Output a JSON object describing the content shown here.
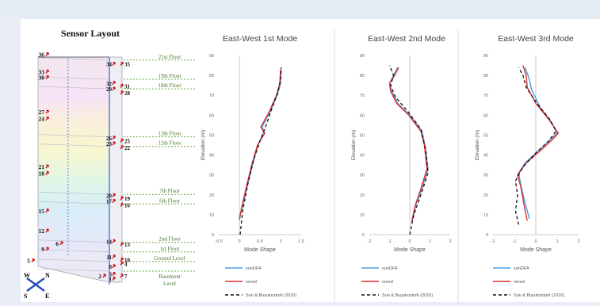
{
  "sensor_layout": {
    "title": "Sensor Layout",
    "floors": [
      {
        "label": "21st Floor",
        "level": 21
      },
      {
        "label": "19th Floor",
        "level": 19
      },
      {
        "label": "18th Floor",
        "level": 18
      },
      {
        "label": "13th Floor",
        "level": 13
      },
      {
        "label": "12th Floor",
        "level": 12
      },
      {
        "label": "7th Floor",
        "level": 7
      },
      {
        "label": "6th Floor",
        "level": 6
      },
      {
        "label": "2nd Floor",
        "level": 2
      },
      {
        "label": "1st Floor",
        "level": 1
      },
      {
        "label": "Ground Level",
        "level": 0
      },
      {
        "label": "Basement Level",
        "level": -1
      }
    ],
    "left_sensors": [
      {
        "id": "36",
        "level": 21.6
      },
      {
        "id": "33",
        "level": 19.8
      },
      {
        "id": "30",
        "level": 19.2
      },
      {
        "id": "27",
        "level": 15.6
      },
      {
        "id": "24",
        "level": 14.9
      },
      {
        "id": "21",
        "level": 9.9
      },
      {
        "id": "18",
        "level": 9.2
      },
      {
        "id": "15",
        "level": 5.3
      },
      {
        "id": "12",
        "level": 3.2
      },
      {
        "id": "9",
        "level": 1.3
      },
      {
        "id": "6",
        "level": 1.9
      },
      {
        "id": "5",
        "level": 0.1
      },
      {
        "id": "2",
        "level": -1.5
      }
    ],
    "right_sensors": [
      {
        "id": "34",
        "level": 20.6
      },
      {
        "id": "35",
        "level": 20.6
      },
      {
        "id": "32",
        "level": 18.6
      },
      {
        "id": "31",
        "level": 18.3
      },
      {
        "id": "29",
        "level": 18.0
      },
      {
        "id": "28",
        "level": 17.6
      },
      {
        "id": "26",
        "level": 12.9
      },
      {
        "id": "25",
        "level": 12.6
      },
      {
        "id": "23",
        "level": 12.3
      },
      {
        "id": "22",
        "level": 11.9
      },
      {
        "id": "20",
        "level": 6.9
      },
      {
        "id": "19",
        "level": 6.6
      },
      {
        "id": "17",
        "level": 6.3
      },
      {
        "id": "16",
        "level": 5.9
      },
      {
        "id": "14",
        "level": 2.1
      },
      {
        "id": "13",
        "level": 1.8
      },
      {
        "id": "11",
        "level": 0.5
      },
      {
        "id": "10",
        "level": 0.2
      },
      {
        "id": "8",
        "level": -0.5
      },
      {
        "id": "4",
        "level": -0.2
      },
      {
        "id": "3",
        "level": -1.3
      },
      {
        "id": "7",
        "level": -1.5
      },
      {
        "id": "1",
        "level": -1.8
      }
    ],
    "compass": {
      "n": "N",
      "s": "S",
      "e": "E",
      "w": "W"
    }
  },
  "chart_data": [
    {
      "type": "line",
      "title": "East-West 1st Mode",
      "xlabel": "Mode Shape",
      "ylabel": "Elevation (m)",
      "xlim": [
        -0.5,
        1.5
      ],
      "ylim": [
        0,
        90
      ],
      "xticks": [
        "-0.5",
        "0",
        "0.5",
        "1",
        "1.5"
      ],
      "yticks": [
        "0",
        "10",
        "20",
        "30",
        "40",
        "50",
        "60",
        "70",
        "80",
        "90"
      ],
      "series": [
        {
          "name": "sunDFA",
          "color": "#4a9ee0",
          "dash": "",
          "points": [
            [
              0.0,
              7
            ],
            [
              0.08,
              15
            ],
            [
              0.2,
              25
            ],
            [
              0.32,
              35
            ],
            [
              0.45,
              45
            ],
            [
              0.6,
              52
            ],
            [
              0.55,
              54
            ],
            [
              0.75,
              62
            ],
            [
              0.92,
              70
            ],
            [
              1.0,
              76
            ],
            [
              1.01,
              84
            ]
          ]
        },
        {
          "name": "nmod",
          "color": "#e03030",
          "dash": "",
          "points": [
            [
              0.0,
              8
            ],
            [
              0.07,
              15
            ],
            [
              0.18,
              25
            ],
            [
              0.3,
              35
            ],
            [
              0.44,
              45
            ],
            [
              0.62,
              51
            ],
            [
              0.52,
              54
            ],
            [
              0.73,
              62
            ],
            [
              0.9,
              70
            ],
            [
              0.98,
              76
            ],
            [
              1.0,
              83
            ]
          ]
        },
        {
          "name": "Sun & Buyukozturk (2016)",
          "color": "#111111",
          "dash": "4,3",
          "points": [
            [
              0.02,
              0
            ],
            [
              0.08,
              12
            ],
            [
              0.2,
              25
            ],
            [
              0.35,
              38
            ],
            [
              0.5,
              47
            ],
            [
              0.65,
              55
            ],
            [
              0.8,
              64
            ],
            [
              0.94,
              72
            ],
            [
              1.0,
              78
            ],
            [
              1.02,
              84
            ]
          ]
        }
      ]
    },
    {
      "type": "line",
      "title": "East-West 2nd Mode",
      "xlabel": "Mode Shape",
      "ylabel": "Elevation (m)",
      "xlim": [
        -2,
        2
      ],
      "ylim": [
        0,
        90
      ],
      "xticks": [
        "-2",
        "-1",
        "0",
        "1",
        "2"
      ],
      "yticks": [
        "0",
        "10",
        "20",
        "30",
        "40",
        "50",
        "60",
        "70",
        "80",
        "90"
      ],
      "series": [
        {
          "name": "sunDFA",
          "color": "#4a9ee0",
          "dash": "",
          "points": [
            [
              0.1,
              6
            ],
            [
              0.3,
              15
            ],
            [
              0.6,
              23
            ],
            [
              0.9,
              33
            ],
            [
              0.75,
              45
            ],
            [
              0.6,
              52
            ],
            [
              0.0,
              60
            ],
            [
              -0.6,
              66
            ],
            [
              -0.9,
              72
            ],
            [
              -1.0,
              76
            ],
            [
              -0.8,
              80
            ],
            [
              -0.6,
              84
            ]
          ]
        },
        {
          "name": "nmod",
          "color": "#e03030",
          "dash": "",
          "points": [
            [
              0.1,
              7
            ],
            [
              0.28,
              15
            ],
            [
              0.55,
              23
            ],
            [
              0.85,
              33
            ],
            [
              0.72,
              45
            ],
            [
              0.55,
              52
            ],
            [
              -0.05,
              60
            ],
            [
              -0.65,
              66
            ],
            [
              -0.95,
              72
            ],
            [
              -1.0,
              76
            ],
            [
              -0.75,
              80
            ],
            [
              -0.55,
              84
            ]
          ]
        },
        {
          "name": "Sun & Buyukozturk (2016)",
          "color": "#111111",
          "dash": "4,3",
          "points": [
            [
              0.0,
              0
            ],
            [
              0.2,
              10
            ],
            [
              0.55,
              20
            ],
            [
              0.9,
              31
            ],
            [
              0.8,
              42
            ],
            [
              0.55,
              53
            ],
            [
              -0.1,
              62
            ],
            [
              -0.7,
              69
            ],
            [
              -0.95,
              75
            ],
            [
              -0.8,
              80
            ],
            [
              -1.0,
              85
            ]
          ]
        }
      ]
    },
    {
      "type": "line",
      "title": "East-West 3rd Mode",
      "xlabel": "Mode Shape",
      "ylabel": "Elevation (m)",
      "xlim": [
        -2,
        2
      ],
      "ylim": [
        0,
        90
      ],
      "xticks": [
        "-2",
        "-1",
        "0",
        "1",
        "2"
      ],
      "yticks": [
        "0",
        "10",
        "20",
        "30",
        "40",
        "50",
        "60",
        "70",
        "80",
        "90"
      ],
      "series": [
        {
          "name": "sunDFA",
          "color": "#4a9ee0",
          "dash": "",
          "points": [
            [
              -0.3,
              8
            ],
            [
              -0.5,
              16
            ],
            [
              -0.7,
              25
            ],
            [
              -0.8,
              31
            ],
            [
              -0.5,
              36
            ],
            [
              0.1,
              42
            ],
            [
              0.7,
              48
            ],
            [
              1.0,
              51
            ],
            [
              0.7,
              57
            ],
            [
              0.2,
              64
            ],
            [
              -0.2,
              73
            ],
            [
              -0.3,
              78
            ],
            [
              -0.5,
              84
            ]
          ]
        },
        {
          "name": "nmod",
          "color": "#e03030",
          "dash": "",
          "points": [
            [
              -0.4,
              7
            ],
            [
              -0.55,
              15
            ],
            [
              -0.7,
              24
            ],
            [
              -0.85,
              30
            ],
            [
              -0.45,
              36
            ],
            [
              0.2,
              42
            ],
            [
              0.8,
              48
            ],
            [
              1.05,
              51
            ],
            [
              0.6,
              58
            ],
            [
              0.0,
              66
            ],
            [
              -0.4,
              74
            ],
            [
              -0.45,
              80
            ],
            [
              -0.6,
              85
            ]
          ]
        },
        {
          "name": "Sun & Buyukozturk (2016)",
          "color": "#111111",
          "dash": "4,3",
          "points": [
            [
              -0.8,
              5
            ],
            [
              -0.95,
              12
            ],
            [
              -0.85,
              20
            ],
            [
              -0.95,
              27
            ],
            [
              -0.6,
              34
            ],
            [
              0.0,
              41
            ],
            [
              0.6,
              47
            ],
            [
              0.95,
              52
            ],
            [
              0.65,
              58
            ],
            [
              0.05,
              66
            ],
            [
              -0.45,
              74
            ],
            [
              -0.6,
              80
            ],
            [
              -0.8,
              84
            ]
          ]
        }
      ]
    }
  ]
}
